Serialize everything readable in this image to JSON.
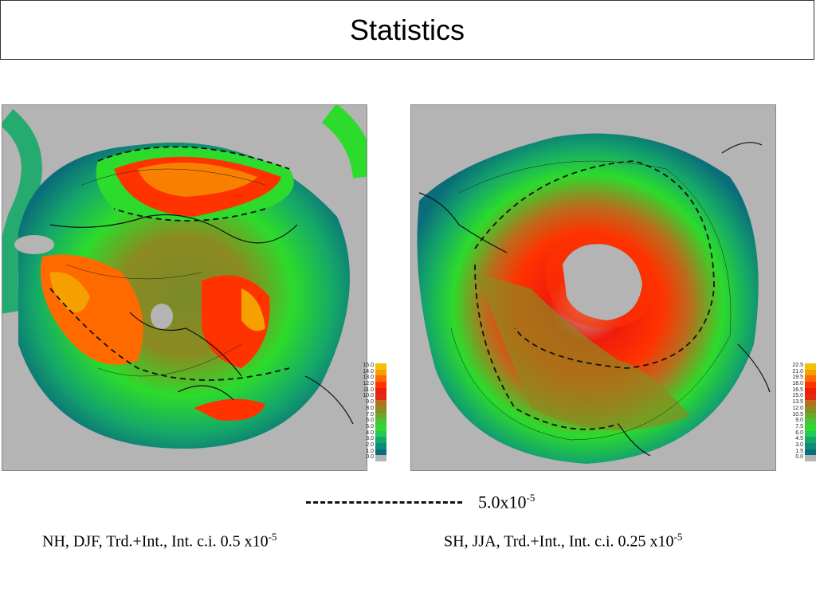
{
  "title": "Statistics",
  "legend": {
    "value": "5.0x10",
    "exponent": "-5"
  },
  "panels": [
    {
      "caption": "NH, DJF, Trd.+Int., Int. c.i. 0.5 x10",
      "caption_exponent": "-5",
      "colorbar_labels": [
        "15.0",
        "14.0",
        "13.0",
        "12.0",
        "11.0",
        "10.0",
        "9.0",
        "8.0",
        "7.0",
        "6.0",
        "5.0",
        "4.0",
        "3.0",
        "2.0",
        "1.0",
        "0.0"
      ]
    },
    {
      "caption": "SH, JJA, Trd.+Int., Int. c.i. 0.25 x10",
      "caption_exponent": "-5",
      "colorbar_labels": [
        "22.5",
        "21.0",
        "19.5",
        "18.0",
        "16.5",
        "15.0",
        "13.5",
        "12.0",
        "10.5",
        "9.0",
        "7.5",
        "6.0",
        "4.5",
        "3.0",
        "1.5",
        "0.0"
      ]
    }
  ],
  "colors": {
    "scale": [
      "#f2c200",
      "#f5a000",
      "#ff6a00",
      "#ff3300",
      "#f01c0c",
      "#e02a12",
      "#b86e1e",
      "#8c8a20",
      "#6aa82a",
      "#49c43a",
      "#2cdb2c",
      "#22c85a",
      "#15a868",
      "#0f8c74",
      "#0a6e7a",
      "#b4b4b4"
    ]
  }
}
